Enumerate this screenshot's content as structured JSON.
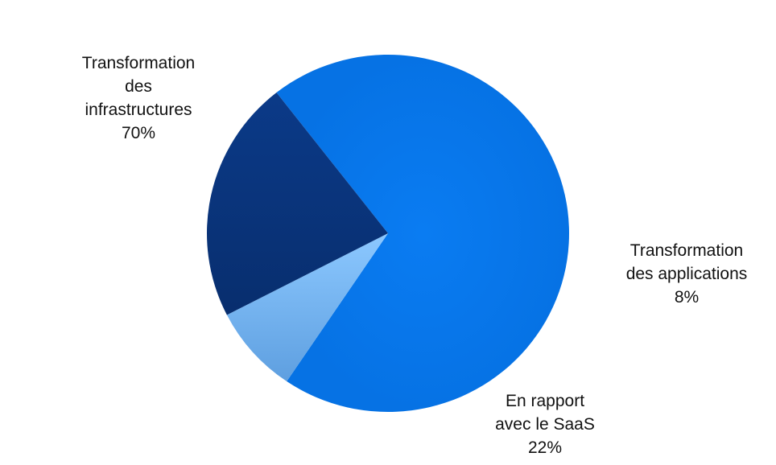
{
  "chart_data": {
    "type": "pie",
    "start_angle_deg": -128,
    "direction": "clockwise",
    "slices": [
      {
        "lines": [
          "Transformation",
          "des",
          "infrastructures"
        ],
        "label": "Transformation des infrastructures",
        "value": 70,
        "value_label": "70%",
        "color": "#0A7CF2"
      },
      {
        "lines": [
          "Transformation",
          "des applications"
        ],
        "label": "Transformation des applications",
        "value": 8,
        "value_label": "8%",
        "color": "#7FC0FF"
      },
      {
        "lines": [
          "En rapport",
          "avec  le SaaS"
        ],
        "label": "En rapport avec le SaaS",
        "value": 22,
        "value_label": "22%",
        "color": "#0A357E"
      }
    ]
  }
}
